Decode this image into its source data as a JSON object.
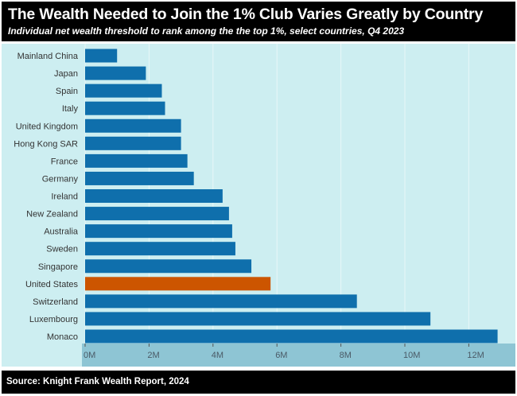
{
  "header": {
    "title": "The Wealth Needed to Join the 1% Club Varies Greatly by Country",
    "subtitle": "Individual net wealth threshold to rank among the the top 1%, select countries, Q4 2023"
  },
  "footer": {
    "source": "Source: Knight Frank Wealth Report, 2024"
  },
  "colors": {
    "default_bar": "#0f6fac",
    "highlight_bar": "#cc5500",
    "panel_bg": "#cdeef1",
    "axis_band": "#8ec5d4"
  },
  "chart_data": {
    "type": "bar",
    "orientation": "horizontal",
    "title": "The Wealth Needed to Join the 1% Club Varies Greatly by Country",
    "subtitle": "Individual net wealth threshold to rank among the the top 1%, select countries, Q4 2023",
    "xlabel": "",
    "ylabel": "",
    "categories": [
      "Mainland China",
      "Japan",
      "Spain",
      "Italy",
      "United Kingdom",
      "Hong Kong SAR",
      "France",
      "Germany",
      "Ireland",
      "New Zealand",
      "Australia",
      "Sweden",
      "Singapore",
      "United States",
      "Switzerland",
      "Luxembourg",
      "Monaco"
    ],
    "values": [
      1.0,
      1.9,
      2.4,
      2.5,
      3.0,
      3.0,
      3.2,
      3.4,
      4.3,
      4.5,
      4.6,
      4.7,
      5.2,
      5.8,
      8.5,
      10.8,
      12.9
    ],
    "unit": "M",
    "highlight": "United States",
    "xlim": [
      0,
      13.5
    ],
    "xticks": [
      0,
      2,
      4,
      6,
      8,
      10,
      12
    ],
    "xtick_labels": [
      "0M",
      "2M",
      "4M",
      "6M",
      "8M",
      "10M",
      "12M"
    ],
    "grid": "vertical"
  }
}
